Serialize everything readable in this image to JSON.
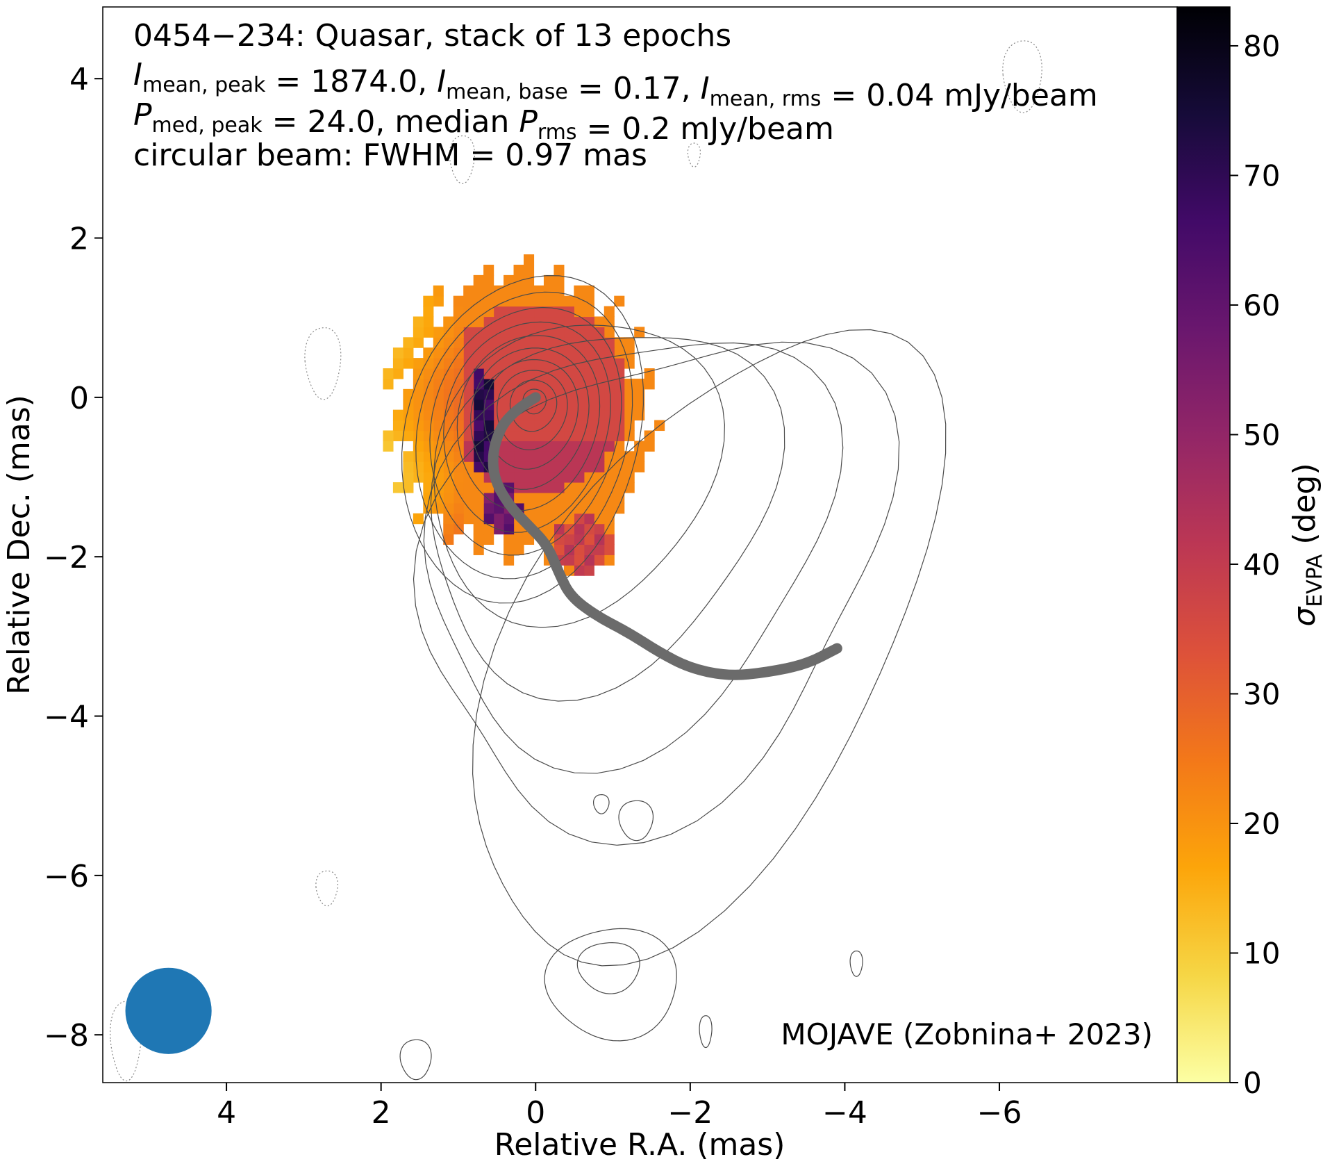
{
  "chart_data": {
    "type": "heatmap",
    "title_lines": [
      "0454−234: Quasar, stack of 13 epochs",
      "circular beam: FWHM = 0.97 mas"
    ],
    "title_rich": {
      "line2": [
        {
          "t": "I",
          "style": "italic"
        },
        {
          "t": "mean, peak",
          "style": "sub"
        },
        {
          "t": " = 1874.0, "
        },
        {
          "t": "I",
          "style": "italic"
        },
        {
          "t": "mean, base",
          "style": "sub"
        },
        {
          "t": " = 0.17, "
        },
        {
          "t": "I",
          "style": "italic"
        },
        {
          "t": "mean, rms",
          "style": "sub"
        },
        {
          "t": " = 0.04 mJy/beam"
        }
      ],
      "line3": [
        {
          "t": "P",
          "style": "italic"
        },
        {
          "t": "med, peak",
          "style": "sub"
        },
        {
          "t": " = 24.0, median "
        },
        {
          "t": "P",
          "style": "italic"
        },
        {
          "t": "rms",
          "style": "sub"
        },
        {
          "t": " = 0.2 mJy/beam"
        }
      ]
    },
    "xlabel": "Relative R.A. (mas)",
    "ylabel": "Relative Dec. (mas)",
    "colorbar_label": {
      "symbol": "σ",
      "sub": "EVPA",
      "rest": " (deg)"
    },
    "annotation": "MOJAVE (Zobnina+ 2023)",
    "xlim": [
      5.6,
      -8.3
    ],
    "ylim": [
      -8.6,
      4.9
    ],
    "x_ticks": [
      4,
      2,
      0,
      -2,
      -4,
      -6
    ],
    "x_tick_labels": [
      "4",
      "2",
      "0",
      "−2",
      "−4",
      "−6"
    ],
    "y_ticks": [
      4,
      2,
      0,
      -2,
      -4,
      -6,
      -8
    ],
    "y_tick_labels": [
      "4",
      "2",
      "0",
      "−2",
      "−4",
      "−6",
      "−8"
    ],
    "colorbar_range": [
      0,
      83
    ],
    "colorbar_ticks": [
      0,
      10,
      20,
      30,
      40,
      50,
      60,
      70,
      80
    ],
    "colormap": "inferno_r",
    "colormap_stops": [
      "#fcffa4",
      "#f6d645",
      "#fca50a",
      "#f37819",
      "#dd513a",
      "#bc3754",
      "#932667",
      "#6a176e",
      "#420a68",
      "#160b39",
      "#000004"
    ],
    "beam": {
      "center": [
        4.75,
        -7.7
      ],
      "fwhm": 0.97,
      "color": "#1f77b4"
    },
    "jet_ridgeline": {
      "color": "#6b6b6b",
      "points": [
        [
          0,
          0
        ],
        [
          0.35,
          -0.2
        ],
        [
          0.55,
          -0.6
        ],
        [
          0.55,
          -1.0
        ],
        [
          0.35,
          -1.35
        ],
        [
          0.1,
          -1.6
        ],
        [
          -0.15,
          -1.85
        ],
        [
          -0.3,
          -2.2
        ],
        [
          -0.45,
          -2.5
        ],
        [
          -0.8,
          -2.75
        ],
        [
          -1.2,
          -2.95
        ],
        [
          -1.6,
          -3.2
        ],
        [
          -2.0,
          -3.4
        ],
        [
          -2.5,
          -3.5
        ],
        [
          -3.0,
          -3.45
        ],
        [
          -3.5,
          -3.35
        ],
        [
          -3.9,
          -3.15
        ]
      ]
    },
    "polarization_regions": [
      {
        "name": "core-disk",
        "center": [
          0.0,
          0.0
        ],
        "rx": 1.2,
        "ry": 1.2,
        "sigma": 36
      },
      {
        "name": "west-crescent",
        "center": [
          1.4,
          -0.4
        ],
        "rx": 0.8,
        "ry": 1.3,
        "sigma": 18
      },
      {
        "name": "northwest-rim",
        "center": [
          1.7,
          -0.1
        ],
        "rx": 0.5,
        "ry": 0.9,
        "sigma": 8
      },
      {
        "name": "dark-ridge",
        "center": [
          0.7,
          -0.3
        ],
        "rx": 0.16,
        "ry": 0.7,
        "sigma": 70
      },
      {
        "name": "lower-knot",
        "center": [
          0.45,
          -1.4
        ],
        "rx": 0.25,
        "ry": 0.3,
        "sigma": 58
      },
      {
        "name": "south-blob",
        "center": [
          -0.6,
          -1.85
        ],
        "rx": 0.4,
        "ry": 0.35,
        "sigma": 38
      }
    ],
    "contour_levels_count": 10
  }
}
